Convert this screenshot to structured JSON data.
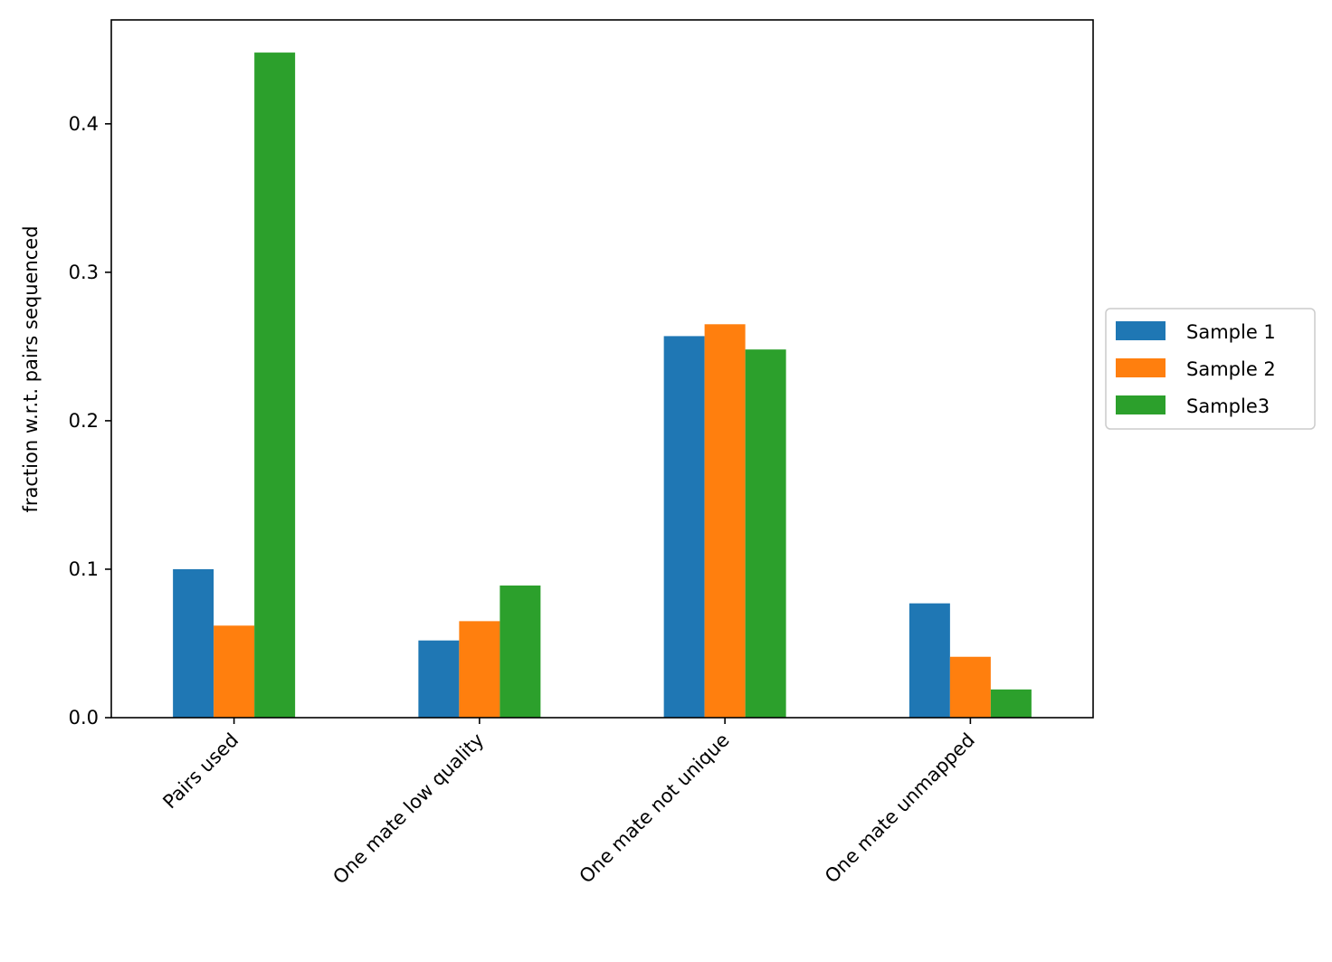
{
  "chart_data": {
    "type": "bar",
    "title": "",
    "xlabel": "",
    "ylabel": "fraction w.r.t. pairs sequenced",
    "categories": [
      "Pairs used",
      "One mate low quality",
      "One mate not unique",
      "One mate unmapped"
    ],
    "series": [
      {
        "name": "Sample 1",
        "color": "#1f77b4",
        "values": [
          0.1,
          0.052,
          0.257,
          0.077
        ]
      },
      {
        "name": "Sample 2",
        "color": "#ff7f0e",
        "values": [
          0.062,
          0.065,
          0.265,
          0.041
        ]
      },
      {
        "name": "Sample3",
        "color": "#2ca02c",
        "values": [
          0.448,
          0.089,
          0.248,
          0.019
        ]
      }
    ],
    "ylim": [
      0,
      0.47
    ],
    "yticks": [
      0.0,
      0.1,
      0.2,
      0.3,
      0.4
    ],
    "ytick_labels": [
      "0.0",
      "0.1",
      "0.2",
      "0.3",
      "0.4"
    ],
    "grid": false,
    "legend": "center-right-outside"
  }
}
